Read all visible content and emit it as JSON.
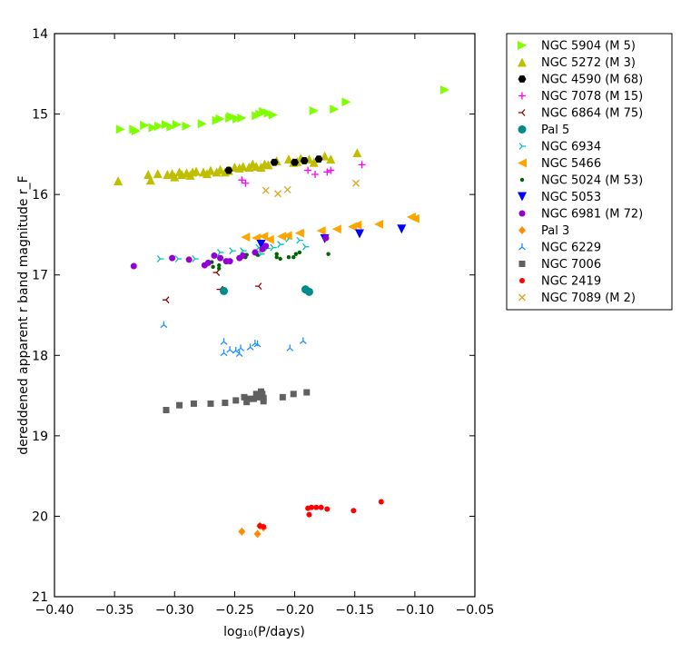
{
  "chart_data": {
    "type": "scatter",
    "xlabel": "log₁₀(P/days)",
    "ylabel": "dereddened apparent r band magnitude r_F",
    "xlim": [
      -0.4,
      -0.05
    ],
    "ylim": [
      21,
      14
    ],
    "y_inverted": true,
    "grid": false,
    "legend_position": "outside-right",
    "x_ticks": [
      "−0.40",
      "−0.35",
      "−0.30",
      "−0.25",
      "−0.20",
      "−0.15",
      "−0.10",
      "−0.05"
    ],
    "x_tick_values": [
      -0.4,
      -0.35,
      -0.3,
      -0.25,
      -0.2,
      -0.15,
      -0.1,
      -0.05
    ],
    "y_ticks": [
      "14",
      "15",
      "16",
      "17",
      "18",
      "19",
      "20",
      "21"
    ],
    "y_tick_values": [
      14,
      15,
      16,
      17,
      18,
      19,
      20,
      21
    ],
    "series": [
      {
        "name": "NGC 5904 (M 5)",
        "color": "#7fff00",
        "marker": "triangle-right",
        "points": [
          [
            -0.345,
            15.19
          ],
          [
            -0.334,
            15.19
          ],
          [
            -0.332,
            15.21
          ],
          [
            -0.325,
            15.14
          ],
          [
            -0.318,
            15.17
          ],
          [
            -0.313,
            15.15
          ],
          [
            -0.307,
            15.13
          ],
          [
            -0.303,
            15.16
          ],
          [
            -0.298,
            15.13
          ],
          [
            -0.29,
            15.15
          ],
          [
            -0.277,
            15.12
          ],
          [
            -0.265,
            15.08
          ],
          [
            -0.262,
            15.06
          ],
          [
            -0.254,
            15.05
          ],
          [
            -0.253,
            15.03
          ],
          [
            -0.248,
            15.06
          ],
          [
            -0.244,
            15.05
          ],
          [
            -0.232,
            15.02
          ],
          [
            -0.229,
            15.0
          ],
          [
            -0.226,
            14.97
          ],
          [
            -0.222,
            14.99
          ],
          [
            -0.218,
            15.01
          ],
          [
            -0.184,
            14.96
          ],
          [
            -0.167,
            14.94
          ],
          [
            -0.157,
            14.85
          ],
          [
            -0.075,
            14.7
          ]
        ]
      },
      {
        "name": "NGC 5272 (M 3)",
        "color": "#bfbf00",
        "marker": "triangle-up",
        "points": [
          [
            -0.347,
            15.83
          ],
          [
            -0.322,
            15.75
          ],
          [
            -0.32,
            15.82
          ],
          [
            -0.314,
            15.74
          ],
          [
            -0.306,
            15.75
          ],
          [
            -0.302,
            15.74
          ],
          [
            -0.3,
            15.78
          ],
          [
            -0.296,
            15.72
          ],
          [
            -0.294,
            15.75
          ],
          [
            -0.29,
            15.73
          ],
          [
            -0.287,
            15.76
          ],
          [
            -0.285,
            15.72
          ],
          [
            -0.282,
            15.71
          ],
          [
            -0.276,
            15.72
          ],
          [
            -0.273,
            15.74
          ],
          [
            -0.27,
            15.7
          ],
          [
            -0.265,
            15.72
          ],
          [
            -0.262,
            15.69
          ],
          [
            -0.258,
            15.72
          ],
          [
            -0.255,
            15.7
          ],
          [
            -0.25,
            15.66
          ],
          [
            -0.246,
            15.67
          ],
          [
            -0.243,
            15.65
          ],
          [
            -0.238,
            15.66
          ],
          [
            -0.235,
            15.62
          ],
          [
            -0.232,
            15.65
          ],
          [
            -0.228,
            15.66
          ],
          [
            -0.225,
            15.62
          ],
          [
            -0.222,
            15.63
          ],
          [
            -0.215,
            15.58
          ],
          [
            -0.205,
            15.56
          ],
          [
            -0.201,
            15.6
          ],
          [
            -0.198,
            15.59
          ],
          [
            -0.195,
            15.55
          ],
          [
            -0.188,
            15.56
          ],
          [
            -0.184,
            15.6
          ],
          [
            -0.175,
            15.52
          ],
          [
            -0.17,
            15.56
          ],
          [
            -0.148,
            15.48
          ]
        ]
      },
      {
        "name": "NGC 4590 (M 68)",
        "color": "#000000",
        "marker": "hexagon",
        "points": [
          [
            -0.255,
            15.7
          ],
          [
            -0.217,
            15.6
          ],
          [
            -0.2,
            15.6
          ],
          [
            -0.192,
            15.58
          ],
          [
            -0.18,
            15.56
          ]
        ]
      },
      {
        "name": "NGC 7078 (M 15)",
        "color": "#ff00ff",
        "marker": "plus",
        "points": [
          [
            -0.244,
            15.82
          ],
          [
            -0.241,
            15.86
          ],
          [
            -0.183,
            15.75
          ],
          [
            -0.173,
            15.72
          ],
          [
            -0.17,
            15.7
          ],
          [
            -0.189,
            15.7
          ],
          [
            -0.144,
            15.63
          ]
        ]
      },
      {
        "name": "NGC 6864 (M 75)",
        "color": "#8b0000",
        "marker": "tri-left",
        "points": [
          [
            -0.265,
            16.97
          ],
          [
            -0.262,
            17.18
          ],
          [
            -0.23,
            17.14
          ],
          [
            -0.307,
            17.31
          ]
        ]
      },
      {
        "name": "Pal 5",
        "color": "#008b8b",
        "marker": "circle-large",
        "points": [
          [
            -0.259,
            17.2
          ],
          [
            -0.191,
            17.18
          ],
          [
            -0.188,
            17.21
          ]
        ]
      },
      {
        "name": "NGC 6934",
        "color": "#00bfbf",
        "marker": "tri-right",
        "points": [
          [
            -0.312,
            16.8
          ],
          [
            -0.297,
            16.8
          ],
          [
            -0.283,
            16.8
          ],
          [
            -0.262,
            16.72
          ],
          [
            -0.252,
            16.7
          ],
          [
            -0.243,
            16.7
          ],
          [
            -0.23,
            16.66
          ],
          [
            -0.223,
            16.67
          ],
          [
            -0.218,
            16.66
          ],
          [
            -0.212,
            16.62
          ],
          [
            -0.191,
            16.65
          ],
          [
            -0.196,
            16.57
          ],
          [
            -0.205,
            16.55
          ],
          [
            -0.228,
            16.74
          ]
        ]
      },
      {
        "name": "NGC 5466",
        "color": "#ffa500",
        "marker": "triangle-left",
        "points": [
          [
            -0.241,
            16.53
          ],
          [
            -0.232,
            16.54
          ],
          [
            -0.226,
            16.52
          ],
          [
            -0.221,
            16.56
          ],
          [
            -0.211,
            16.52
          ],
          [
            -0.206,
            16.51
          ],
          [
            -0.196,
            16.48
          ],
          [
            -0.178,
            16.45
          ],
          [
            -0.165,
            16.43
          ],
          [
            -0.152,
            16.4
          ],
          [
            -0.148,
            16.38
          ],
          [
            -0.13,
            16.37
          ],
          [
            -0.103,
            16.28
          ],
          [
            -0.1,
            16.3
          ]
        ]
      },
      {
        "name": "NGC 5024 (M 53)",
        "color": "#006400",
        "marker": "dot",
        "points": [
          [
            -0.269,
            16.84
          ],
          [
            -0.268,
            16.9
          ],
          [
            -0.263,
            16.88
          ],
          [
            -0.263,
            16.92
          ],
          [
            -0.241,
            16.78
          ],
          [
            -0.24,
            16.75
          ],
          [
            -0.231,
            16.75
          ],
          [
            -0.215,
            16.74
          ],
          [
            -0.212,
            16.8
          ],
          [
            -0.215,
            16.78
          ],
          [
            -0.205,
            16.78
          ],
          [
            -0.201,
            16.78
          ],
          [
            -0.199,
            16.74
          ],
          [
            -0.196,
            16.72
          ],
          [
            -0.172,
            16.74
          ]
        ]
      },
      {
        "name": "NGC 5053",
        "color": "#0000ff",
        "marker": "triangle-down",
        "points": [
          [
            -0.228,
            16.62
          ],
          [
            -0.175,
            16.55
          ],
          [
            -0.146,
            16.49
          ],
          [
            -0.111,
            16.43
          ]
        ]
      },
      {
        "name": "NGC 6981 (M 72)",
        "color": "#9400d3",
        "marker": "circle",
        "points": [
          [
            -0.334,
            16.89
          ],
          [
            -0.302,
            16.79
          ],
          [
            -0.288,
            16.81
          ],
          [
            -0.275,
            16.88
          ],
          [
            -0.272,
            16.85
          ],
          [
            -0.267,
            16.76
          ],
          [
            -0.262,
            16.79
          ],
          [
            -0.257,
            16.83
          ],
          [
            -0.254,
            16.83
          ],
          [
            -0.246,
            16.79
          ],
          [
            -0.243,
            16.76
          ],
          [
            -0.233,
            16.72
          ],
          [
            -0.227,
            16.68
          ],
          [
            -0.224,
            16.64
          ],
          [
            -0.174,
            16.54
          ]
        ]
      },
      {
        "name": "Pal 3",
        "color": "#ff8c00",
        "marker": "diamond",
        "points": [
          [
            -0.244,
            20.19
          ],
          [
            -0.231,
            20.22
          ],
          [
            -0.229,
            20.12
          ],
          [
            -0.226,
            20.14
          ]
        ]
      },
      {
        "name": "NGC 6229",
        "color": "#1e90ff",
        "marker": "tri-up",
        "points": [
          [
            -0.309,
            17.62
          ],
          [
            -0.259,
            17.83
          ],
          [
            -0.259,
            17.97
          ],
          [
            -0.254,
            17.93
          ],
          [
            -0.249,
            17.94
          ],
          [
            -0.246,
            17.98
          ],
          [
            -0.245,
            17.91
          ],
          [
            -0.237,
            17.9
          ],
          [
            -0.233,
            17.85
          ],
          [
            -0.231,
            17.86
          ],
          [
            -0.204,
            17.91
          ],
          [
            -0.193,
            17.82
          ]
        ]
      },
      {
        "name": "NGC 7006",
        "color": "#606060",
        "marker": "square",
        "points": [
          [
            -0.307,
            18.68
          ],
          [
            -0.296,
            18.62
          ],
          [
            -0.284,
            18.6
          ],
          [
            -0.27,
            18.6
          ],
          [
            -0.258,
            18.59
          ],
          [
            -0.249,
            18.56
          ],
          [
            -0.242,
            18.52
          ],
          [
            -0.24,
            18.58
          ],
          [
            -0.237,
            18.54
          ],
          [
            -0.234,
            18.54
          ],
          [
            -0.232,
            18.48
          ],
          [
            -0.23,
            18.52
          ],
          [
            -0.228,
            18.45
          ],
          [
            -0.227,
            18.48
          ],
          [
            -0.226,
            18.53
          ],
          [
            -0.226,
            18.57
          ],
          [
            -0.21,
            18.52
          ],
          [
            -0.201,
            18.48
          ],
          [
            -0.19,
            18.46
          ]
        ]
      },
      {
        "name": "NGC 2419",
        "color": "#ff0000",
        "marker": "dot-medium",
        "points": [
          [
            -0.189,
            19.9
          ],
          [
            -0.186,
            19.89
          ],
          [
            -0.182,
            19.89
          ],
          [
            -0.178,
            19.89
          ],
          [
            -0.173,
            19.91
          ],
          [
            -0.151,
            19.93
          ],
          [
            -0.188,
            19.98
          ],
          [
            -0.128,
            19.82
          ],
          [
            -0.226,
            20.13
          ],
          [
            -0.229,
            20.12
          ]
        ]
      },
      {
        "name": "NGC 7089 (M 2)",
        "color": "#daa520",
        "marker": "x",
        "points": [
          [
            -0.224,
            15.95
          ],
          [
            -0.214,
            15.99
          ],
          [
            -0.206,
            15.94
          ],
          [
            -0.149,
            15.86
          ]
        ]
      }
    ]
  }
}
